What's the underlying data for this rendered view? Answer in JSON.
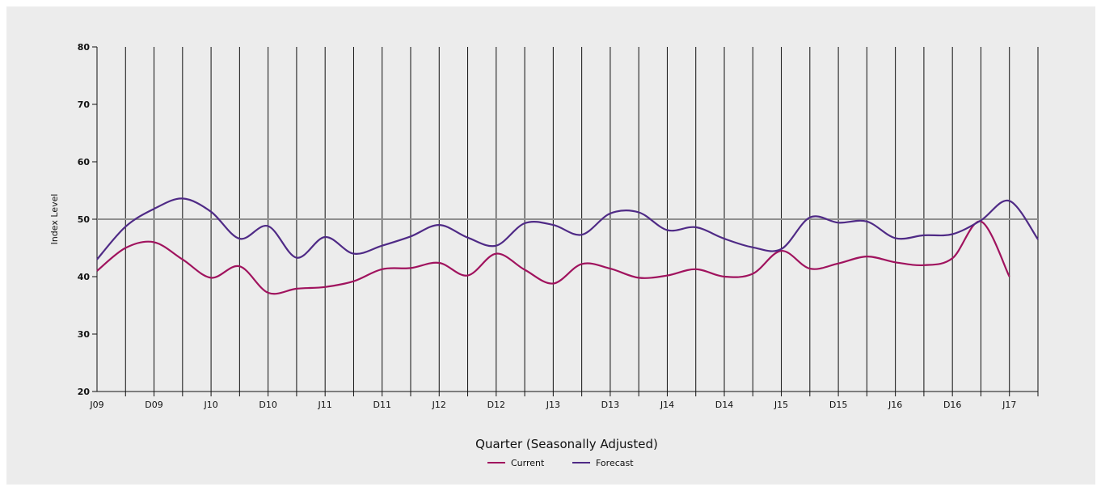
{
  "chart_data": {
    "type": "line",
    "xlabel": "Quarter (Seasonally Adjusted)",
    "ylabel": "Index Level",
    "ylim": [
      20,
      80
    ],
    "yticks": [
      20,
      30,
      40,
      50,
      60,
      70,
      80
    ],
    "reference_line": 50,
    "x_tick_labels": [
      "J09",
      "D09",
      "J10",
      "D10",
      "J11",
      "D11",
      "J12",
      "D12",
      "J13",
      "D13",
      "J14",
      "D14",
      "J15",
      "D15",
      "J16",
      "D16",
      "J17"
    ],
    "legend_position": "bottom-center",
    "grid": "vertical",
    "series": [
      {
        "name": "Current",
        "color": "#a0135e",
        "values": [
          41.0,
          45.0,
          46.0,
          43.0,
          39.8,
          41.8,
          37.2,
          37.9,
          38.2,
          39.2,
          41.3,
          41.5,
          42.4,
          40.2,
          44.0,
          41.2,
          38.8,
          42.2,
          41.4,
          39.8,
          40.2,
          41.3,
          40.0,
          40.5,
          44.5,
          41.4,
          42.3,
          43.5,
          42.5,
          42.0,
          43.2,
          49.6,
          40.0
        ]
      },
      {
        "name": "Forecast",
        "color": "#4f2a86",
        "values": [
          43.0,
          48.7,
          51.8,
          53.6,
          51.3,
          46.6,
          48.8,
          43.3,
          46.9,
          44.0,
          45.4,
          47.0,
          49.0,
          46.8,
          45.4,
          49.3,
          49.0,
          47.3,
          51.0,
          51.2,
          48.1,
          48.6,
          46.6,
          45.1,
          44.8,
          50.3,
          49.4,
          49.6,
          46.7,
          47.2,
          47.4,
          49.8,
          53.2,
          46.5
        ]
      }
    ]
  }
}
